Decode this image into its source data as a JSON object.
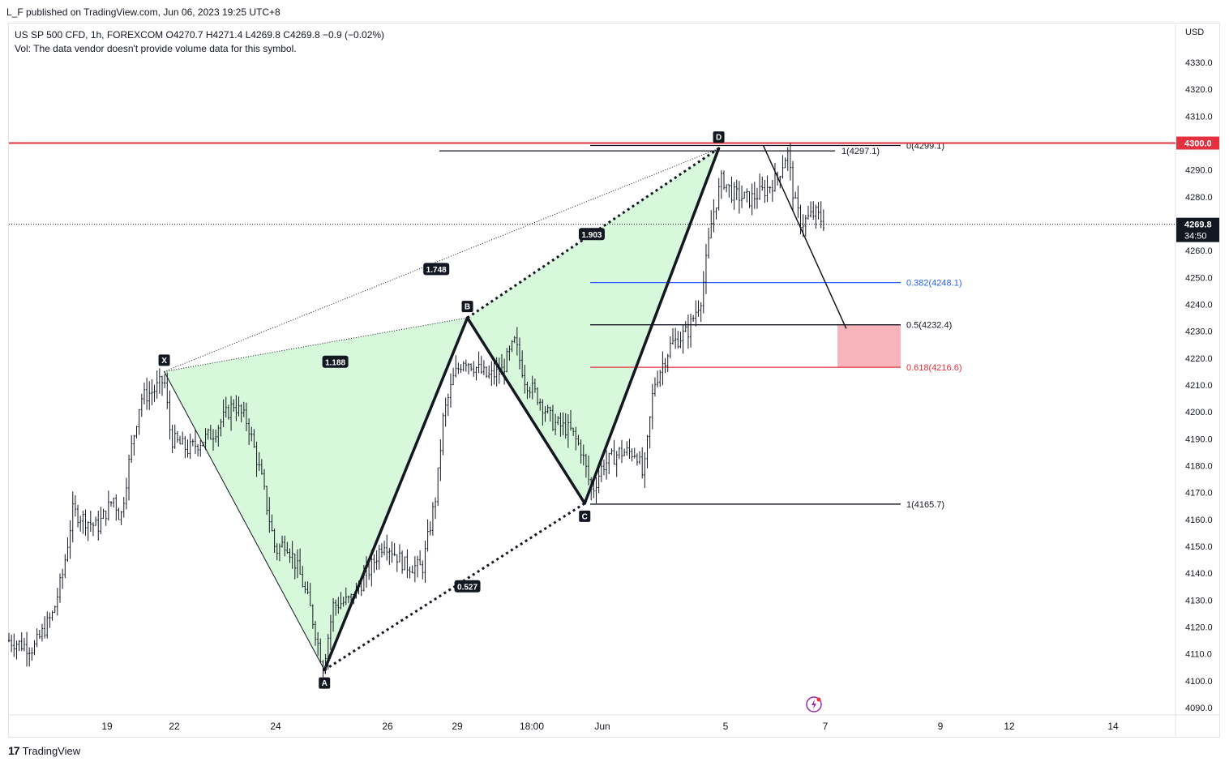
{
  "header": {
    "publisher": "L_F published on TradingView.com, Jun 06, 2023 19:25 UTC+8"
  },
  "legend": {
    "symbol_line": "US SP 500 CFD, 1h, FOREXCOM  O4270.7  H4271.4  L4269.8  C4269.8  −0.9 (−0.02%)",
    "volume_line": "Vol: The data vendor doesn't provide volume data for this symbol."
  },
  "currency": "USD",
  "footer": {
    "brand": "TradingView"
  },
  "colors": {
    "red_line": "#e5303f",
    "blue_line": "#2962ff",
    "pattern_fill": "#d8f8dc",
    "target_zone": "#f8b4bb",
    "candles": "#131722"
  },
  "chart_data": {
    "type": "line",
    "title": "",
    "xlabel": "",
    "ylabel": "",
    "ylim": [
      4085,
      4337
    ],
    "y_ticks": [
      "4090.0",
      "4100.0",
      "4110.0",
      "4120.0",
      "4130.0",
      "4140.0",
      "4150.0",
      "4160.0",
      "4170.0",
      "4180.0",
      "4190.0",
      "4200.0",
      "4210.0",
      "4220.0",
      "4230.0",
      "4240.0",
      "4250.0",
      "4260.0",
      "4270.0",
      "4280.0",
      "4290.0",
      "4300.0",
      "4310.0",
      "4320.0",
      "4330.0"
    ],
    "x_ticks": [
      {
        "label": "19",
        "pos": 19.0
      },
      {
        "label": "22",
        "pos": 20.0
      },
      {
        "label": "24",
        "pos": 21.45
      },
      {
        "label": "26",
        "pos": 23.1
      },
      {
        "label": "29",
        "pos": 24.1
      },
      {
        "label": "18:00",
        "pos": 25.2
      },
      {
        "label": "Jun",
        "pos": 26.2
      },
      {
        "label": "5",
        "pos": 28.0
      },
      {
        "label": "7",
        "pos": 29.45
      },
      {
        "label": "9",
        "pos": 31.1
      },
      {
        "label": "12",
        "pos": 32.1
      },
      {
        "label": "14",
        "pos": 33.6
      }
    ],
    "price_anchors": [
      {
        "pos": 18.0,
        "v": 4115
      },
      {
        "pos": 18.25,
        "v": 4112
      },
      {
        "pos": 18.45,
        "v": 4125
      },
      {
        "pos": 18.55,
        "v": 4140
      },
      {
        "pos": 18.65,
        "v": 4163
      },
      {
        "pos": 18.9,
        "v": 4157
      },
      {
        "pos": 19.1,
        "v": 4168
      },
      {
        "pos": 19.2,
        "v": 4160
      },
      {
        "pos": 19.35,
        "v": 4185
      },
      {
        "pos": 19.5,
        "v": 4205
      },
      {
        "pos": 19.7,
        "v": 4208
      },
      {
        "pos": 19.85,
        "v": 4212
      },
      {
        "pos": 19.95,
        "v": 4190
      },
      {
        "pos": 20.2,
        "v": 4186
      },
      {
        "pos": 20.55,
        "v": 4192
      },
      {
        "pos": 20.85,
        "v": 4203
      },
      {
        "pos": 21.05,
        "v": 4196
      },
      {
        "pos": 21.25,
        "v": 4175
      },
      {
        "pos": 21.45,
        "v": 4148
      },
      {
        "pos": 21.6,
        "v": 4152
      },
      {
        "pos": 21.8,
        "v": 4140
      },
      {
        "pos": 21.95,
        "v": 4128
      },
      {
        "pos": 22.15,
        "v": 4105
      },
      {
        "pos": 22.3,
        "v": 4128
      },
      {
        "pos": 22.55,
        "v": 4130
      },
      {
        "pos": 22.85,
        "v": 4142
      },
      {
        "pos": 23.05,
        "v": 4152
      },
      {
        "pos": 23.35,
        "v": 4143
      },
      {
        "pos": 23.6,
        "v": 4142
      },
      {
        "pos": 23.8,
        "v": 4170
      },
      {
        "pos": 23.9,
        "v": 4198
      },
      {
        "pos": 24.05,
        "v": 4213
      },
      {
        "pos": 24.2,
        "v": 4220
      },
      {
        "pos": 24.35,
        "v": 4217
      },
      {
        "pos": 24.55,
        "v": 4213
      },
      {
        "pos": 24.75,
        "v": 4215
      },
      {
        "pos": 24.95,
        "v": 4226
      },
      {
        "pos": 25.1,
        "v": 4212
      },
      {
        "pos": 25.3,
        "v": 4205
      },
      {
        "pos": 25.5,
        "v": 4196
      },
      {
        "pos": 25.75,
        "v": 4193
      },
      {
        "pos": 25.9,
        "v": 4186
      },
      {
        "pos": 26.05,
        "v": 4170
      },
      {
        "pos": 26.2,
        "v": 4180
      },
      {
        "pos": 26.45,
        "v": 4185
      },
      {
        "pos": 26.7,
        "v": 4185
      },
      {
        "pos": 26.8,
        "v": 4175
      },
      {
        "pos": 26.95,
        "v": 4210
      },
      {
        "pos": 27.2,
        "v": 4225
      },
      {
        "pos": 27.45,
        "v": 4230
      },
      {
        "pos": 27.65,
        "v": 4243
      },
      {
        "pos": 27.8,
        "v": 4272
      },
      {
        "pos": 27.95,
        "v": 4287
      },
      {
        "pos": 28.1,
        "v": 4281
      },
      {
        "pos": 28.35,
        "v": 4279
      },
      {
        "pos": 28.6,
        "v": 4283
      },
      {
        "pos": 28.75,
        "v": 4287
      },
      {
        "pos": 28.9,
        "v": 4297
      },
      {
        "pos": 29.0,
        "v": 4278
      },
      {
        "pos": 29.1,
        "v": 4270
      },
      {
        "pos": 29.3,
        "v": 4274
      },
      {
        "pos": 29.45,
        "v": 4270
      }
    ],
    "current_price": {
      "value": 4269.8,
      "label": "4269.8",
      "countdown": "34:50"
    },
    "level_label": {
      "value": 4300.0,
      "label": "4300.0"
    },
    "pattern_points": [
      {
        "name": "X",
        "pos": 19.85,
        "v": 4215
      },
      {
        "name": "A",
        "pos": 22.17,
        "v": 4104
      },
      {
        "name": "B",
        "pos": 24.25,
        "v": 4235
      },
      {
        "name": "C",
        "pos": 25.95,
        "v": 4166
      },
      {
        "name": "D",
        "pos": 27.9,
        "v": 4298
      }
    ],
    "ratios": [
      {
        "label": "1.188",
        "pos": 22.33,
        "v": 4218.5
      },
      {
        "label": "1.748",
        "pos": 23.8,
        "v": 4253
      },
      {
        "label": "0.527",
        "pos": 24.25,
        "v": 4135
      },
      {
        "label": "1.903",
        "pos": 26.05,
        "v": 4266
      }
    ],
    "fib_levels": [
      {
        "label": "0(4299.1)",
        "v": 4299.1,
        "color": "#131722"
      },
      {
        "label": "1(4297.1)",
        "v": 4297.1,
        "color": "#131722"
      },
      {
        "label": "0.382(4248.1)",
        "v": 4248.1,
        "color": "#2962ff"
      },
      {
        "label": "0.5(4232.4)",
        "v": 4232.4,
        "color": "#131722"
      },
      {
        "label": "0.618(4216.6)",
        "v": 4216.6,
        "color": "#e5303f"
      },
      {
        "label": "1(4165.7)",
        "v": 4165.7,
        "color": "#131722"
      }
    ],
    "resistance": {
      "v": 4300.0,
      "color": "#e5303f"
    },
    "projection": [
      {
        "pos": 28.55,
        "v": 4299
      },
      {
        "pos": 29.75,
        "v": 4231
      }
    ],
    "target_zone": {
      "from": 4216.6,
      "to": 4232.4
    }
  }
}
